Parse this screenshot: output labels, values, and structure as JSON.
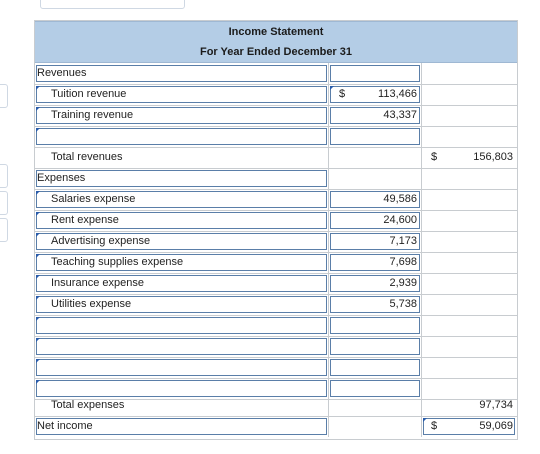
{
  "header": {
    "title": "Income Statement",
    "period": "For Year Ended December 31"
  },
  "rows": [
    {
      "label": "Revenues",
      "indent": false
    },
    {
      "label": "Tuition revenue",
      "indent": true,
      "col2_currency": "$",
      "col2": "113,466"
    },
    {
      "label": "Training revenue",
      "indent": true,
      "col2": "43,337"
    },
    {
      "label": "",
      "indent": true
    },
    {
      "label": "Total revenues",
      "indent": true,
      "col3_currency": "$",
      "col3": "156,803"
    },
    {
      "label": "Expenses",
      "indent": false
    },
    {
      "label": "Salaries expense",
      "indent": true,
      "col2": "49,586"
    },
    {
      "label": "Rent expense",
      "indent": true,
      "col2": "24,600"
    },
    {
      "label": "Advertising expense",
      "indent": true,
      "col2": "7,173"
    },
    {
      "label": "Teaching supplies expense",
      "indent": true,
      "col2": "7,698"
    },
    {
      "label": "Insurance expense",
      "indent": true,
      "col2": "2,939"
    },
    {
      "label": "Utilities expense",
      "indent": true,
      "col2": "5,738"
    },
    {
      "label": "",
      "indent": true
    },
    {
      "label": "",
      "indent": true
    },
    {
      "label": "",
      "indent": true
    },
    {
      "label": "",
      "indent": true
    },
    {
      "label": "Total expenses",
      "indent": true,
      "col3": "97,734"
    },
    {
      "label": "Net income",
      "indent": false,
      "col3_currency": "$",
      "col3": "59,069"
    }
  ],
  "colors": {
    "header_bg": "#b4cde6",
    "input_border": "#5a7ea8",
    "grid": "#c8ccd0",
    "marker": "#2a5caa"
  }
}
